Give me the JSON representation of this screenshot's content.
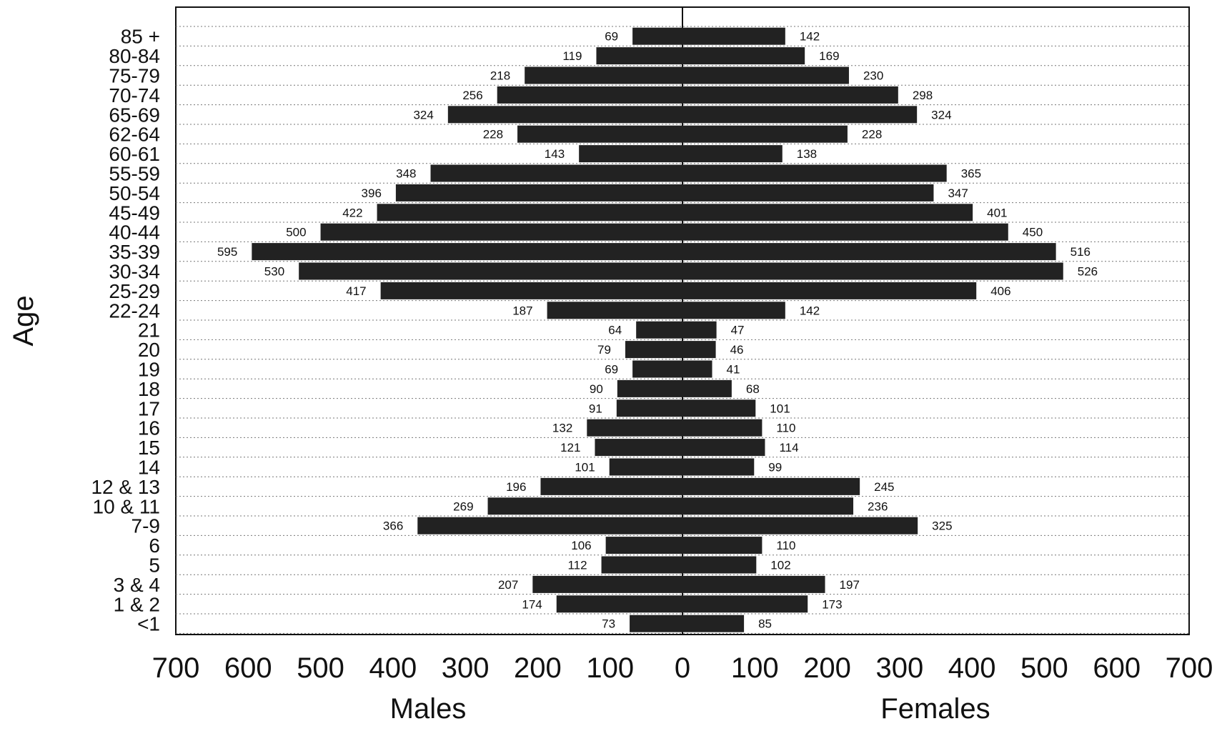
{
  "chart_data": {
    "type": "bar",
    "orientation": "horizontal",
    "layout": "population-pyramid",
    "ylabel": "Age",
    "xlabel_left": "Males",
    "xlabel_right": "Females",
    "xlim": [
      -700,
      700
    ],
    "x_ticks": [
      700,
      600,
      500,
      400,
      300,
      200,
      100,
      0,
      100,
      200,
      300,
      400,
      500,
      600,
      700
    ],
    "grid": "horizontal dotted",
    "bar_color": "#222222",
    "categories": [
      "85 +",
      "80-84",
      "75-79",
      "70-74",
      "65-69",
      "62-64",
      "60-61",
      "55-59",
      "50-54",
      "45-49",
      "40-44",
      "35-39",
      "30-34",
      "25-29",
      "22-24",
      "21",
      "20",
      "19",
      "18",
      "17",
      "16",
      "15",
      "14",
      "12 & 13",
      "10 & 11",
      "7-9",
      "6",
      "5",
      "3 & 4",
      "1 & 2",
      "<1"
    ],
    "series": [
      {
        "name": "Males",
        "values": [
          69,
          119,
          218,
          256,
          324,
          228,
          143,
          348,
          396,
          422,
          500,
          595,
          530,
          417,
          187,
          64,
          79,
          69,
          90,
          91,
          132,
          121,
          101,
          196,
          269,
          366,
          106,
          112,
          207,
          174,
          73
        ]
      },
      {
        "name": "Females",
        "values": [
          142,
          169,
          230,
          298,
          324,
          228,
          138,
          365,
          347,
          401,
          450,
          516,
          526,
          406,
          142,
          47,
          46,
          41,
          68,
          101,
          110,
          114,
          99,
          245,
          236,
          325,
          110,
          102,
          197,
          173,
          85
        ]
      }
    ]
  }
}
